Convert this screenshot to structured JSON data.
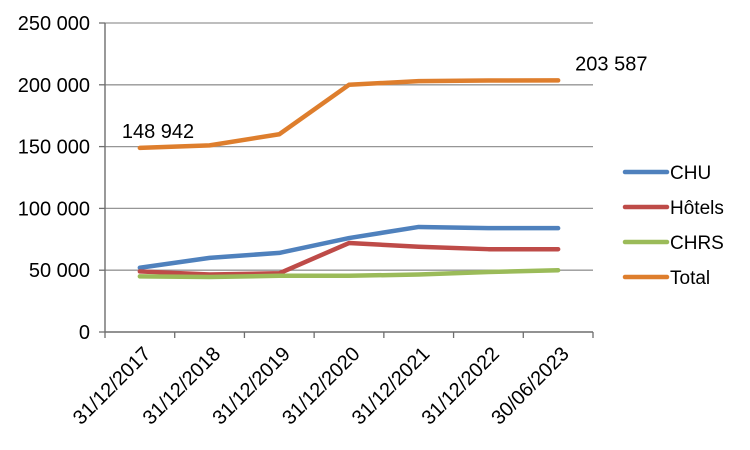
{
  "chart_data": {
    "type": "line",
    "title": "",
    "xlabel": "",
    "ylabel": "",
    "x": [
      "31/12/2017",
      "31/12/2018",
      "31/12/2019",
      "31/12/2020",
      "31/12/2021",
      "31/12/2022",
      "30/06/2023"
    ],
    "series": [
      {
        "name": "CHU",
        "color": "#4F81BD",
        "values": [
          52000,
          60000,
          64000,
          76000,
          85000,
          84000,
          84000
        ]
      },
      {
        "name": "Hôtels",
        "color": "#BE4B48",
        "values": [
          49000,
          46500,
          47500,
          72000,
          69000,
          67000,
          67000
        ]
      },
      {
        "name": "CHRS",
        "color": "#9BBB59",
        "values": [
          45000,
          44500,
          45500,
          45500,
          46500,
          48500,
          50000
        ]
      },
      {
        "name": "Total",
        "color": "#DE7E2D",
        "values": [
          148942,
          151000,
          160000,
          200000,
          203000,
          203500,
          203587
        ]
      }
    ],
    "ylim": [
      0,
      250000
    ],
    "yticks": [
      {
        "value": 0,
        "label": "0"
      },
      {
        "value": 50000,
        "label": "50 000"
      },
      {
        "value": 100000,
        "label": "100 000"
      },
      {
        "value": 150000,
        "label": "150 000"
      },
      {
        "value": 200000,
        "label": "200 000"
      },
      {
        "value": 250000,
        "label": "250 000"
      }
    ],
    "grid": true,
    "legend_position": "right",
    "annotations": [
      {
        "text": "148 942",
        "series_index": 3,
        "point_index": 0,
        "position": "left"
      },
      {
        "text": "203 587",
        "series_index": 3,
        "point_index": 6,
        "position": "right"
      }
    ],
    "colors": {
      "background": "#FFFFFF",
      "gridline": "#969696",
      "axis": "#6E6E6E",
      "text": "#000000"
    }
  }
}
